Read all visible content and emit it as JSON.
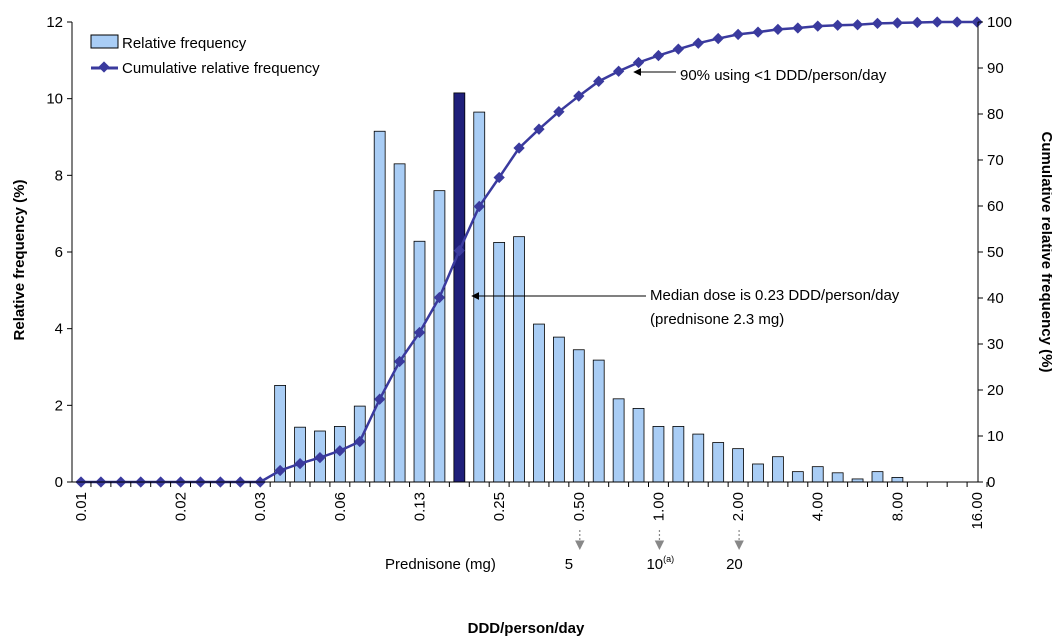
{
  "chart_data": {
    "type": "bar",
    "xlabel": "DDD/person/day",
    "ylabel": "Relative frequency (%)",
    "y2label": "Cumulative relative frequency (%)",
    "ylim": [
      0,
      12
    ],
    "y2lim": [
      0,
      100
    ],
    "yticks": [
      "0",
      "2",
      "4",
      "6",
      "8",
      "10",
      "12"
    ],
    "y2ticks": [
      "0",
      "10",
      "20",
      "30",
      "40",
      "50",
      "60",
      "70",
      "80",
      "90",
      "100"
    ],
    "xtick_labels": [
      {
        "index": 0,
        "label": "0.01"
      },
      {
        "index": 5,
        "label": "0.02"
      },
      {
        "index": 9,
        "label": "0.03"
      },
      {
        "index": 13,
        "label": "0.06"
      },
      {
        "index": 17,
        "label": "0.13"
      },
      {
        "index": 21,
        "label": "0.25"
      },
      {
        "index": 25,
        "label": "0.50"
      },
      {
        "index": 29,
        "label": "1.00"
      },
      {
        "index": 33,
        "label": "2.00"
      },
      {
        "index": 37,
        "label": "4.00"
      },
      {
        "index": 41,
        "label": "8.00"
      },
      {
        "index": 45,
        "label": "16.00"
      }
    ],
    "highlight_index": 19,
    "bar_color": "#a9cdf5",
    "highlight_color": "#1f1f7a",
    "line_color": "#3a3a9e",
    "series": [
      {
        "name": "Relative frequency",
        "type": "bar",
        "axis": "left",
        "values": [
          0,
          0,
          0,
          0,
          0,
          0,
          0,
          0,
          0,
          0,
          2.52,
          1.43,
          1.33,
          1.45,
          1.98,
          9.15,
          8.3,
          6.28,
          7.6,
          10.15,
          9.65,
          6.25,
          6.4,
          4.12,
          3.78,
          3.45,
          3.18,
          2.17,
          1.92,
          1.45,
          1.45,
          1.25,
          1.03,
          0.87,
          0.47,
          0.66,
          0.27,
          0.4,
          0.24,
          0.08,
          0.27,
          0.12,
          0,
          0,
          0,
          0
        ]
      },
      {
        "name": "Cumulative relative frequency",
        "type": "line",
        "axis": "right",
        "values": [
          0,
          0,
          0,
          0,
          0,
          0,
          0,
          0,
          0,
          0,
          2.5,
          4.0,
          5.3,
          6.8,
          8.8,
          18,
          26.2,
          32.5,
          40.1,
          50.3,
          59.9,
          66.2,
          72.6,
          76.7,
          80.5,
          83.9,
          87.1,
          89.3,
          91.2,
          92.7,
          94.1,
          95.4,
          96.4,
          97.3,
          97.8,
          98.4,
          98.7,
          99.1,
          99.3,
          99.4,
          99.7,
          99.8,
          99.9,
          100,
          100,
          100
        ]
      }
    ],
    "annotations": {
      "median_line1": "Median dose is 0.23 DDD/person/day",
      "median_line2": "(prednisone 2.3 mg)",
      "ninety": "90% using <1 DDD/person/day",
      "prednisone_label": "Prednisone (mg)",
      "prednisone_marks": [
        {
          "index": 25,
          "label": "5",
          "sup": ""
        },
        {
          "index": 29,
          "label": "10",
          "sup": "(a)"
        },
        {
          "index": 33,
          "label": "20",
          "sup": ""
        }
      ]
    }
  }
}
